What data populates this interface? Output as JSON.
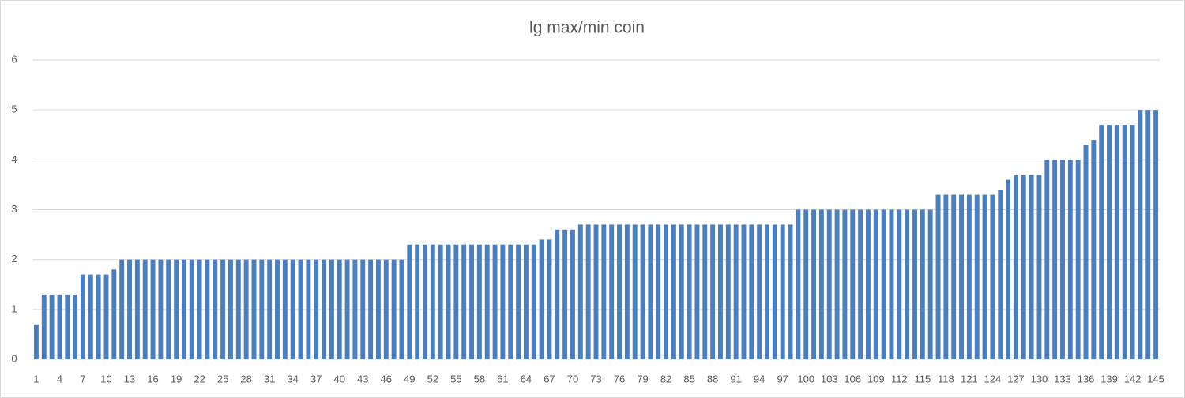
{
  "chart_data": {
    "type": "bar",
    "title": "lg max/min coin",
    "categories": [
      "1",
      null,
      null,
      "4",
      null,
      null,
      "7",
      null,
      null,
      "10",
      null,
      null,
      "13",
      null,
      null,
      "16",
      null,
      null,
      "19",
      null,
      null,
      "22",
      null,
      null,
      "25",
      null,
      null,
      "28",
      null,
      null,
      "31",
      null,
      null,
      "34",
      null,
      null,
      "37",
      null,
      null,
      "40",
      null,
      null,
      "43",
      null,
      null,
      "46",
      null,
      null,
      "49",
      null,
      null,
      "52",
      null,
      null,
      "55",
      null,
      null,
      "58",
      null,
      null,
      "61",
      null,
      null,
      "64",
      null,
      null,
      "67",
      null,
      null,
      "70",
      null,
      null,
      "73",
      null,
      null,
      "76",
      null,
      null,
      "79",
      null,
      null,
      "82",
      null,
      null,
      "85",
      null,
      null,
      "88",
      null,
      null,
      "91",
      null,
      null,
      "94",
      null,
      null,
      "97",
      null,
      null,
      "100",
      null,
      null,
      "103",
      null,
      null,
      "106",
      null,
      null,
      "109",
      null,
      null,
      "112",
      null,
      null,
      "115",
      null,
      null,
      "118",
      null,
      null,
      "121",
      null,
      null,
      "124",
      null,
      null,
      "127",
      null,
      null,
      "130",
      null,
      null,
      "133",
      null,
      null,
      "136",
      null,
      null,
      "139",
      null,
      null,
      "142",
      null,
      null,
      "145"
    ],
    "values": [
      0.7,
      1.3,
      1.3,
      1.3,
      1.3,
      1.3,
      1.7,
      1.7,
      1.7,
      1.7,
      1.8,
      2,
      2,
      2,
      2,
      2,
      2,
      2,
      2,
      2,
      2,
      2,
      2,
      2,
      2,
      2,
      2,
      2,
      2,
      2,
      2,
      2,
      2,
      2,
      2,
      2,
      2,
      2,
      2,
      2,
      2,
      2,
      2,
      2,
      2,
      2,
      2,
      2,
      2.3,
      2.3,
      2.3,
      2.3,
      2.3,
      2.3,
      2.3,
      2.3,
      2.3,
      2.3,
      2.3,
      2.3,
      2.3,
      2.3,
      2.3,
      2.3,
      2.3,
      2.4,
      2.4,
      2.6,
      2.6,
      2.6,
      2.7,
      2.7,
      2.7,
      2.7,
      2.7,
      2.7,
      2.7,
      2.7,
      2.7,
      2.7,
      2.7,
      2.7,
      2.7,
      2.7,
      2.7,
      2.7,
      2.7,
      2.7,
      2.7,
      2.7,
      2.7,
      2.7,
      2.7,
      2.7,
      2.7,
      2.7,
      2.7,
      2.7,
      3,
      3,
      3,
      3,
      3,
      3,
      3,
      3,
      3,
      3,
      3,
      3,
      3,
      3,
      3,
      3,
      3,
      3,
      3.3,
      3.3,
      3.3,
      3.3,
      3.3,
      3.3,
      3.3,
      3.3,
      3.4,
      3.6,
      3.7,
      3.7,
      3.7,
      3.7,
      4,
      4,
      4,
      4,
      4,
      4.3,
      4.4,
      4.7,
      4.7,
      4.7,
      4.7,
      4.7,
      5,
      5,
      5
    ],
    "color": "#4a7ebf",
    "ylim": [
      0,
      6
    ],
    "yticks": [
      0,
      1,
      2,
      3,
      4,
      5,
      6
    ],
    "grid": true
  }
}
